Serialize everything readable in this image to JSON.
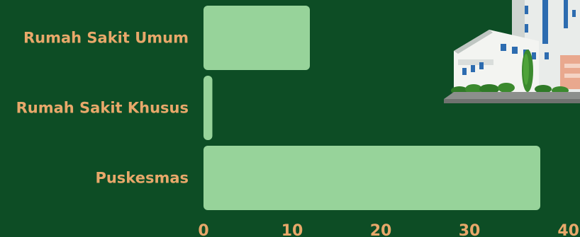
{
  "chart_data": {
    "type": "bar",
    "orientation": "horizontal",
    "categories": [
      "Rumah Sakit Umum",
      "Rumah Sakit Khusus",
      "Puskesmas"
    ],
    "values": [
      12,
      1,
      38
    ],
    "xlim": [
      0,
      40
    ],
    "xticks": [
      "0",
      "10",
      "20",
      "30",
      "40"
    ],
    "title": "",
    "xlabel": "",
    "ylabel": "",
    "grid": false,
    "colors": {
      "background": "#0d4d25",
      "bar": "#97d39a",
      "label": "#e8a86a"
    }
  },
  "illustration": {
    "icon": "hospital-building-icon"
  }
}
